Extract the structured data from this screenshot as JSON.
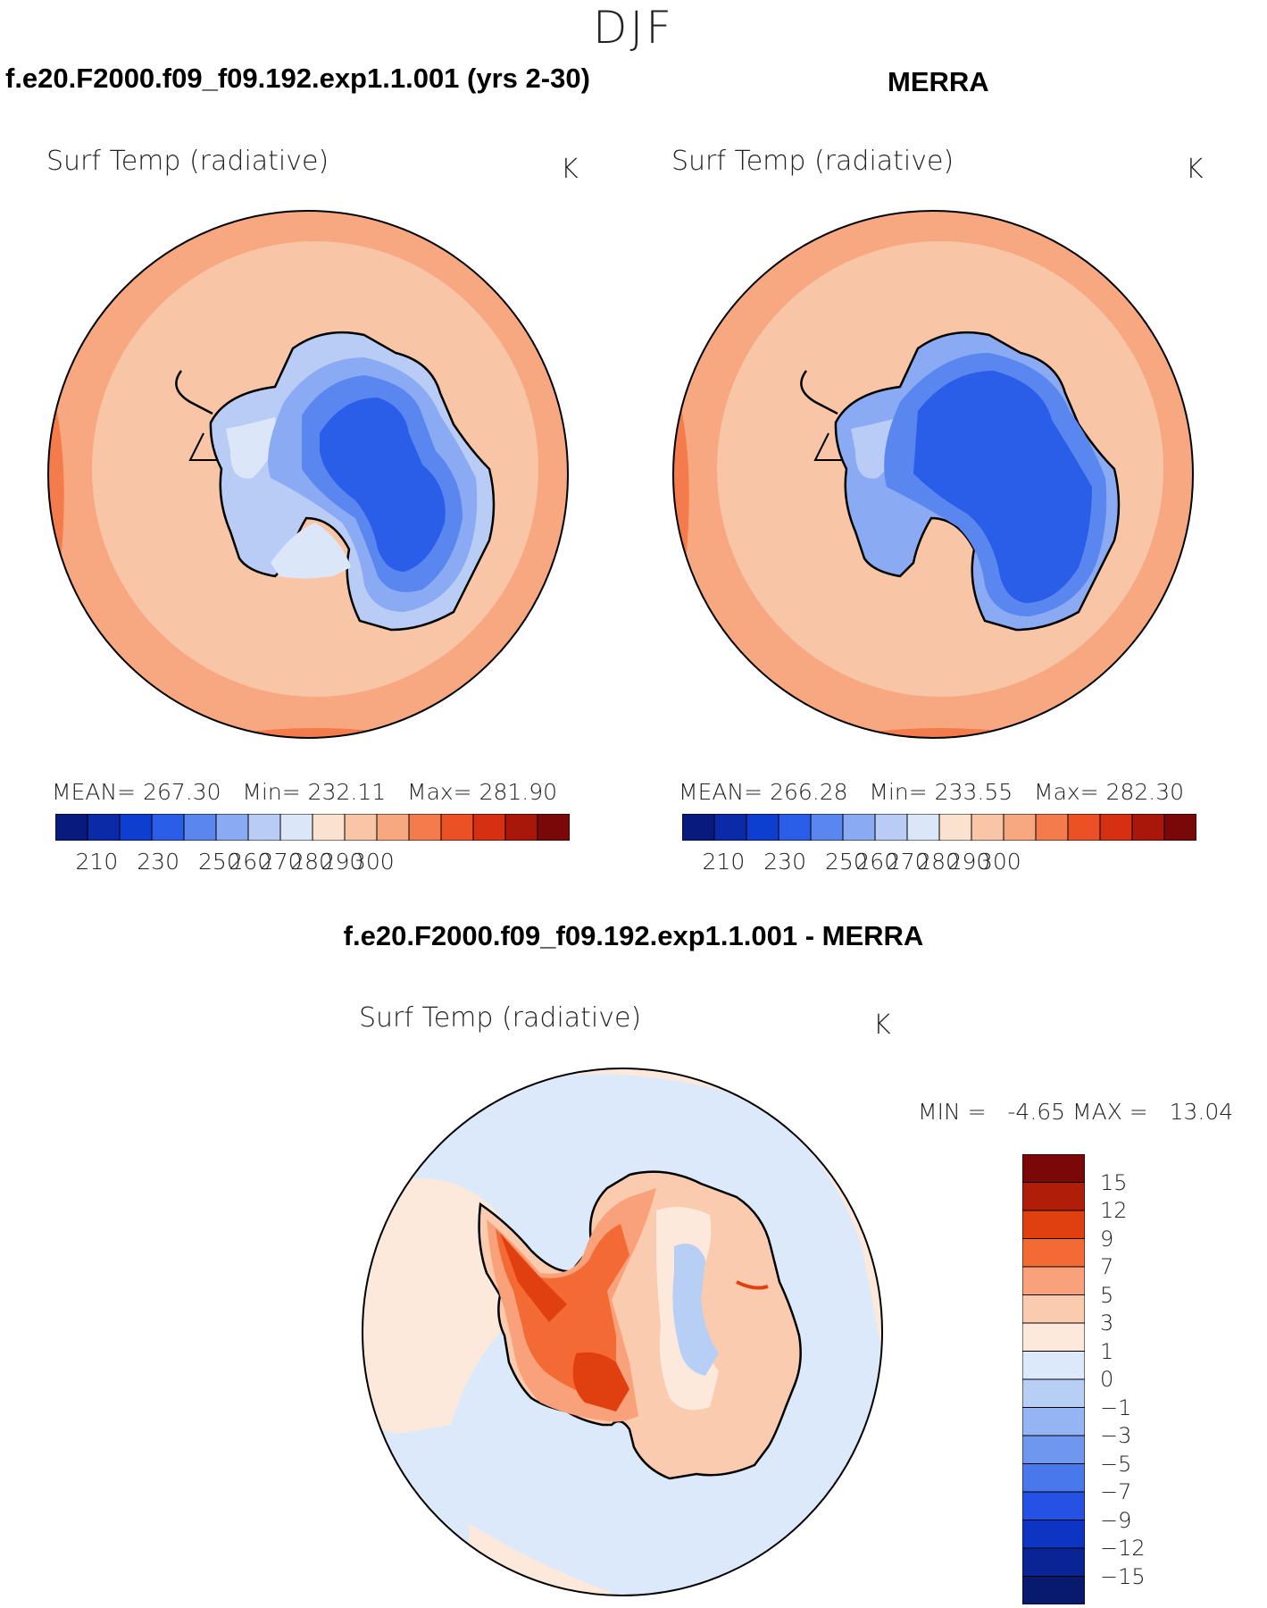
{
  "season": "DJF",
  "panels": [
    {
      "title": "f.e20.F2000.f09_f09.192.exp1.1.001 (yrs 2-30)",
      "variable": "Surf Temp (radiative)",
      "units": "K",
      "stats": {
        "mean_label": "MEAN=",
        "mean": "267.30",
        "min_label": "Min=",
        "min": "232.11",
        "max_label": "Max=",
        "max": "281.90"
      }
    },
    {
      "title": "MERRA",
      "variable": "Surf Temp (radiative)",
      "units": "K",
      "stats": {
        "mean_label": "MEAN=",
        "mean": "266.28",
        "min_label": "Min=",
        "min": "233.55",
        "max_label": "Max=",
        "max": "282.30"
      }
    }
  ],
  "difference": {
    "title": "f.e20.F2000.f09_f09.192.exp1.1.001 - MERRA",
    "variable": "Surf Temp (radiative)",
    "units": "K",
    "min_label": "MIN =",
    "min": "-4.65",
    "max_label": "MAX =",
    "max": "13.04"
  },
  "colorbars": {
    "absolute": {
      "colors": [
        "#081a7e",
        "#0a2aa8",
        "#0d3ecf",
        "#2b5ee8",
        "#5a86f0",
        "#8aaaf3",
        "#b8ccf6",
        "#dbe7f8",
        "#fbe2cf",
        "#f9c5a7",
        "#f8a880",
        "#f47b4b",
        "#ec5126",
        "#d63012",
        "#a8170a",
        "#7a0808"
      ],
      "ticks": [
        "210",
        "230",
        "250",
        "260",
        "270",
        "280",
        "290",
        "300"
      ]
    },
    "difference": {
      "colors": [
        "#7a0808",
        "#b01e0a",
        "#e0400f",
        "#f46a35",
        "#f9a17a",
        "#fbcbb0",
        "#fde9dc",
        "#dbe9fa",
        "#b8cff5",
        "#94b4f3",
        "#6f97f0",
        "#4878ec",
        "#2552e4",
        "#0d35c4",
        "#0a2496",
        "#081a6e"
      ],
      "ticks": [
        "15",
        "12",
        "9",
        "7",
        "5",
        "3",
        "1",
        "0",
        "−1",
        "−3",
        "−5",
        "−7",
        "−9",
        "−12",
        "−15"
      ]
    }
  },
  "chart_data": [
    {
      "type": "heatmap",
      "title": "f.e20.F2000.f09_f09.192.exp1.1.001 (yrs 2-30)",
      "variable": "Surf Temp (radiative)",
      "units": "K",
      "season": "DJF",
      "projection": "south polar stereographic",
      "mean": 267.3,
      "min": 232.11,
      "max": 281.9,
      "contour_levels": [
        210,
        220,
        230,
        240,
        250,
        255,
        260,
        265,
        270,
        275,
        280,
        285,
        290,
        295,
        300
      ]
    },
    {
      "type": "heatmap",
      "title": "MERRA",
      "variable": "Surf Temp (radiative)",
      "units": "K",
      "season": "DJF",
      "projection": "south polar stereographic",
      "mean": 266.28,
      "min": 233.55,
      "max": 282.3,
      "contour_levels": [
        210,
        220,
        230,
        240,
        250,
        255,
        260,
        265,
        270,
        275,
        280,
        285,
        290,
        295,
        300
      ]
    },
    {
      "type": "heatmap",
      "title": "f.e20.F2000.f09_f09.192.exp1.1.001 - MERRA",
      "variable": "Surf Temp (radiative)",
      "units": "K",
      "season": "DJF",
      "projection": "south polar stereographic",
      "min": -4.65,
      "max": 13.04,
      "contour_levels": [
        -15,
        -12,
        -9,
        -7,
        -5,
        -3,
        -1,
        0,
        1,
        3,
        5,
        7,
        9,
        12,
        15
      ]
    }
  ]
}
